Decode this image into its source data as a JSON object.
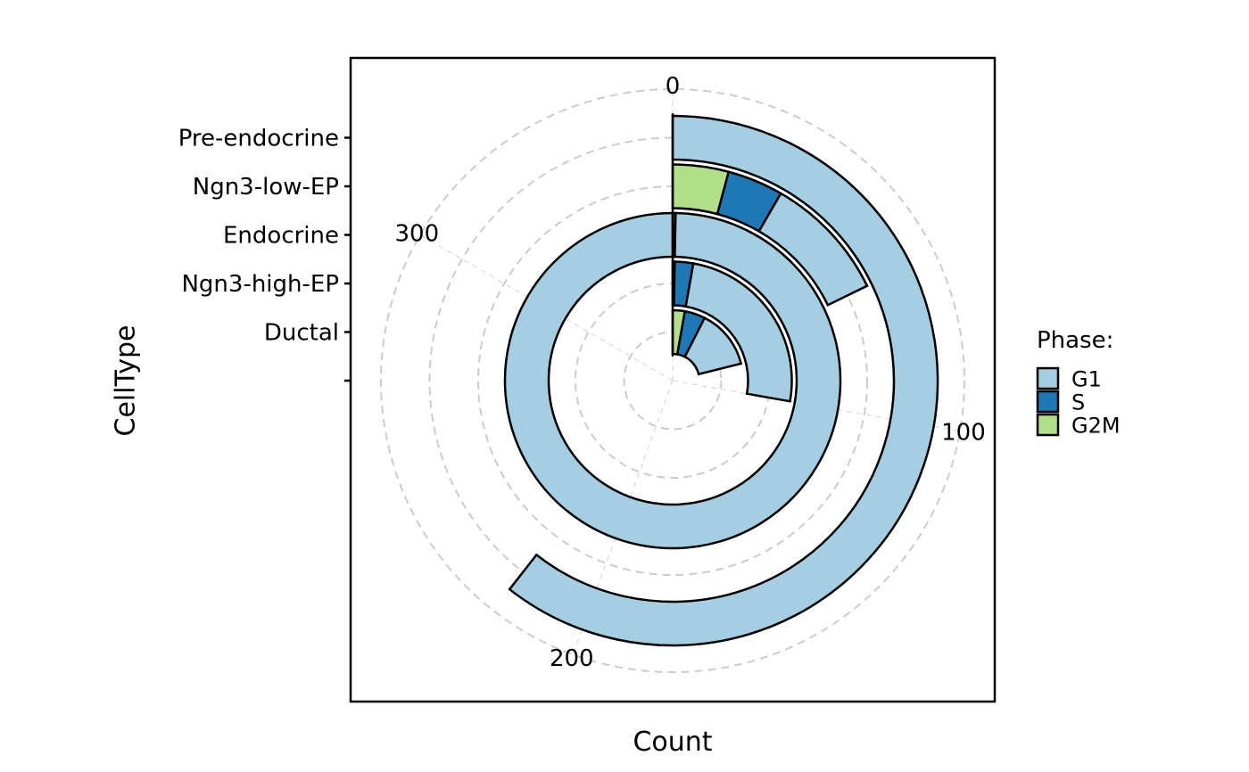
{
  "chart_data": {
    "type": "bar",
    "coord": "polar",
    "stacked": true,
    "xlabel": "Count",
    "ylabel": "CellType",
    "categories": [
      "Ductal",
      "Ngn3-high-EP",
      "Endocrine",
      "Ngn3-low-EP",
      "Pre-endocrine"
    ],
    "series": [
      {
        "name": "G2M",
        "color": "#B2DF8A",
        "values": [
          10,
          1,
          0,
          15,
          0
        ]
      },
      {
        "name": "S",
        "color": "#1F78B4",
        "values": [
          17,
          9,
          1,
          15,
          0
        ]
      },
      {
        "name": "G1",
        "color": "#A6CEE3",
        "values": [
          49,
          90,
          359,
          34,
          218
        ]
      }
    ],
    "angular_axis": {
      "range": [
        0,
        360
      ],
      "ticks": [
        0,
        100,
        200,
        300
      ],
      "tick_labels": [
        "0",
        "100",
        "200",
        "300"
      ]
    },
    "grid": true,
    "legend": {
      "title": "Phase:",
      "position": "right",
      "items": [
        {
          "label": "G1",
          "color": "#A6CEE3"
        },
        {
          "label": "S",
          "color": "#1F78B4"
        },
        {
          "label": "G2M",
          "color": "#B2DF8A"
        }
      ]
    }
  }
}
